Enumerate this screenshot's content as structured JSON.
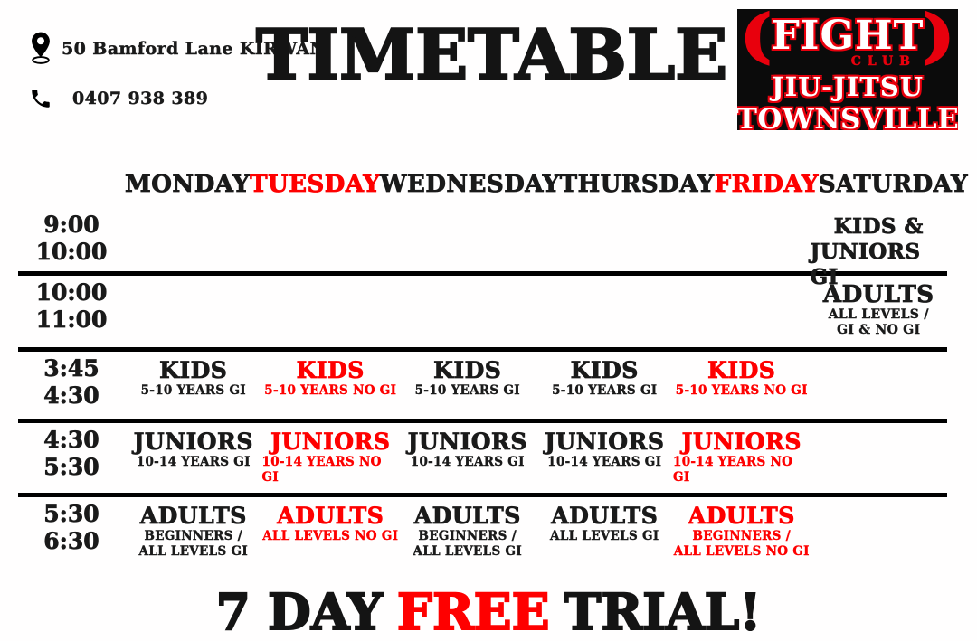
{
  "colors": {
    "red": "#fe0000",
    "black": "#1a1a1a",
    "logo_red": "#e8000d",
    "logo_bg": "#0b0b0b"
  },
  "contact": {
    "address": "50 Bamford Lane KIRWAN",
    "phone": "0407 938 389",
    "address_icon": "location-pin-icon",
    "phone_icon": "phone-icon"
  },
  "title": "TIMETABLE",
  "logo": {
    "paren_left": "(",
    "fight": "FIGHT",
    "paren_right": ")",
    "club": "CLUB",
    "jiujitsu": "JIU-JITSU",
    "townsville": "TOWNSVILLE"
  },
  "days": [
    {
      "label": "MONDAY",
      "color": "#1a1a1a"
    },
    {
      "label": "TUESDAY",
      "color": "#fe0000"
    },
    {
      "label": "WEDNESDAY",
      "color": "#1a1a1a"
    },
    {
      "label": "THURSDAY",
      "color": "#1a1a1a"
    },
    {
      "label": "FRIDAY",
      "color": "#fe0000"
    },
    {
      "label": "SATURDAY",
      "color": "#1a1a1a"
    }
  ],
  "rows": [
    {
      "time_start": "9:00",
      "time_end": "10:00",
      "cells": [
        null,
        null,
        null,
        null,
        null,
        {
          "title_lines": [
            "KIDS &",
            "JUNIORS GI"
          ],
          "sub_lines": [],
          "color": "#1a1a1a"
        }
      ]
    },
    {
      "time_start": "10:00",
      "time_end": "11:00",
      "cells": [
        null,
        null,
        null,
        null,
        null,
        {
          "title_lines": [
            "ADULTS"
          ],
          "sub_lines": [
            "ALL LEVELS /",
            "GI & NO GI"
          ],
          "color": "#1a1a1a"
        }
      ]
    },
    {
      "time_start": "3:45",
      "time_end": "4:30",
      "cells": [
        {
          "title_lines": [
            "KIDS"
          ],
          "sub_lines": [
            "5-10 YEARS GI"
          ],
          "color": "#1a1a1a"
        },
        {
          "title_lines": [
            "KIDS"
          ],
          "sub_lines": [
            "5-10 YEARS NO GI"
          ],
          "color": "#fe0000"
        },
        {
          "title_lines": [
            "KIDS"
          ],
          "sub_lines": [
            "5-10 YEARS GI"
          ],
          "color": "#1a1a1a"
        },
        {
          "title_lines": [
            "KIDS"
          ],
          "sub_lines": [
            "5-10 YEARS  GI"
          ],
          "color": "#1a1a1a"
        },
        {
          "title_lines": [
            "KIDS"
          ],
          "sub_lines": [
            "5-10 YEARS NO GI"
          ],
          "color": "#fe0000"
        },
        null
      ]
    },
    {
      "time_start": "4:30",
      "time_end": "5:30",
      "cells": [
        {
          "title_lines": [
            "JUNIORS"
          ],
          "sub_lines": [
            "10-14 YEARS GI"
          ],
          "color": "#1a1a1a"
        },
        {
          "title_lines": [
            "JUNIORS"
          ],
          "sub_lines": [
            "10-14 YEARS NO GI"
          ],
          "color": "#fe0000"
        },
        {
          "title_lines": [
            "JUNIORS"
          ],
          "sub_lines": [
            "10-14 YEARS GI"
          ],
          "color": "#1a1a1a"
        },
        {
          "title_lines": [
            "JUNIORS"
          ],
          "sub_lines": [
            "10-14 YEARS GI"
          ],
          "color": "#1a1a1a"
        },
        {
          "title_lines": [
            "JUNIORS"
          ],
          "sub_lines": [
            "10-14 YEARS NO GI"
          ],
          "color": "#fe0000"
        },
        null
      ]
    },
    {
      "time_start": "5:30",
      "time_end": "6:30",
      "cells": [
        {
          "title_lines": [
            "ADULTS"
          ],
          "sub_lines": [
            "BEGINNERS /",
            "ALL LEVELS GI"
          ],
          "color": "#1a1a1a"
        },
        {
          "title_lines": [
            "ADULTS"
          ],
          "sub_lines": [
            "ALL LEVELS NO GI"
          ],
          "color": "#fe0000"
        },
        {
          "title_lines": [
            "ADULTS"
          ],
          "sub_lines": [
            "BEGINNERS /",
            "ALL LEVELS GI"
          ],
          "color": "#1a1a1a"
        },
        {
          "title_lines": [
            "ADULTS"
          ],
          "sub_lines": [
            "ALL LEVELS GI"
          ],
          "color": "#1a1a1a"
        },
        {
          "title_lines": [
            "ADULTS"
          ],
          "sub_lines": [
            "BEGINNERS /",
            "ALL LEVELS NO GI"
          ],
          "color": "#fe0000"
        },
        null
      ]
    }
  ],
  "footer": {
    "prefix": "7 DAY",
    "highlight": "FREE",
    "suffix": "TRIAL!"
  }
}
